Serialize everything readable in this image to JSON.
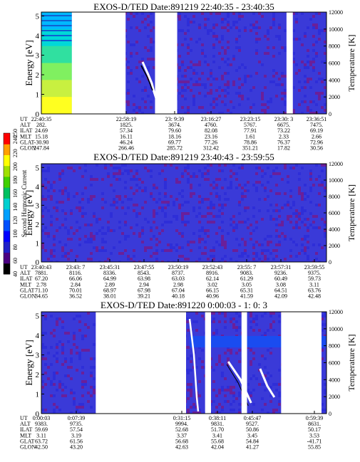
{
  "figure": {
    "colorbar": {
      "label": "Second Harmonic Current",
      "ticks": [
        "40",
        "60",
        "80",
        "100",
        "120",
        "140",
        "160",
        "180",
        "200",
        "220",
        "240",
        "250"
      ],
      "colors": [
        "#000000",
        "#4b0082",
        "#2020c8",
        "#0000ff",
        "#0050ff",
        "#00a0ff",
        "#00d0d0",
        "#00c060",
        "#40d000",
        "#a0e000",
        "#ffff00",
        "#ffa000",
        "#ff0000"
      ]
    },
    "panels": [
      {
        "title": "EXOS-D/TED   Date:891219  22:40:35 - 23:40:35",
        "ylabel": "Energy [eV]",
        "y2label": "Temperature [K]",
        "yticks": [
          "0",
          "1",
          "2",
          "3",
          "4",
          "5"
        ],
        "y2ticks": [
          "0",
          "2000",
          "4000",
          "6000",
          "8000",
          "10000",
          "12000"
        ],
        "rows": [
          "UT",
          "ALT",
          "ILAT",
          "MLT",
          "GLAT",
          "GLON"
        ],
        "columns": [
          [
            "22:40:35",
            "282.",
            "24.69",
            "15.18",
            "-30.90",
            "247.84"
          ],
          [
            "22:58:19",
            "1825.",
            "57.34",
            "16.11",
            "46.24",
            "266.46"
          ],
          [
            "23: 9:39",
            "3674.",
            "79.60",
            "18.16",
            "69.77",
            "285.72"
          ],
          [
            "23:16:27",
            "4760.",
            "82.08",
            "23.16",
            "77.26",
            "312.42"
          ],
          [
            "23:23:15",
            "5767.",
            "77.91",
            "1.61",
            "78.86",
            "351.21"
          ],
          [
            "23:30: 3",
            "6675.",
            "73.22",
            "2.33",
            "76.37",
            "17.82"
          ],
          [
            "23:36:51",
            "7475.",
            "69.19",
            "2.66",
            "72.96",
            "30.56"
          ]
        ]
      },
      {
        "title": "EXOS-D/TED   Date:891219  23:40:43 - 23:59:55",
        "ylabel": "Energy [eV]",
        "y2label": "Temperature [K]",
        "yticks": [
          "0",
          "1",
          "2",
          "3",
          "4",
          "5"
        ],
        "y2ticks": [
          "0",
          "2000",
          "4000",
          "6000",
          "8000",
          "10000",
          "12000"
        ],
        "rows": [
          "UT",
          "ALT",
          "ILAT",
          "MLT",
          "GLAT",
          "GLON"
        ],
        "columns": [
          [
            "23:40:43",
            "7881.",
            "67.20",
            "2.78",
            "71.10",
            "34.65"
          ],
          [
            "23:43: 7",
            "8116.",
            "66.06",
            "2.84",
            "70.01",
            "36.52"
          ],
          [
            "23:45:31",
            "8336.",
            "64.99",
            "2.89",
            "68.97",
            "38.01"
          ],
          [
            "23:47:55",
            "8543.",
            "63.98",
            "2.94",
            "67.98",
            "39.21"
          ],
          [
            "23:50:19",
            "8737.",
            "63.03",
            "2.98",
            "67.04",
            "40.18"
          ],
          [
            "23:52:43",
            "8916.",
            "62.14",
            "3.02",
            "66.15",
            "40.96"
          ],
          [
            "23:55: 7",
            "9083.",
            "61.29",
            "3.05",
            "65.31",
            "41.59"
          ],
          [
            "23:57:31",
            "9236.",
            "60.49",
            "3.08",
            "64.51",
            "42.09"
          ],
          [
            "23:59:55",
            "9375.",
            "59.73",
            "3.11",
            "63.76",
            "42.48"
          ]
        ]
      },
      {
        "title": "EXOS-D/TED   Date:891220  0:00:03 - 1: 0: 3",
        "ylabel": "Energy [eV]",
        "y2label": "Temperature [K]",
        "yticks": [
          "0",
          "1",
          "2",
          "3",
          "4",
          "5"
        ],
        "y2ticks": [
          "0",
          "2000",
          "4000",
          "6000",
          "8000",
          "10000",
          "12000"
        ],
        "rows": [
          "UT",
          "ALT",
          "ILAT",
          "MLT",
          "GLAT",
          "GLON"
        ],
        "columns": [
          [
            "0:00:03",
            "9383.",
            "59.69",
            "3.11",
            "63.72",
            "42.50"
          ],
          [
            "0:07:39",
            "9735.",
            "57.54",
            "3.19",
            "61.56",
            "43.20"
          ],
          [
            "0:31:15",
            "9994.",
            "52.68",
            "3.37",
            "56.68",
            "42.63"
          ],
          [
            "0:38:11",
            "9831.",
            "51.70",
            "3.41",
            "55.68",
            "42.04"
          ],
          [
            "0:45:47",
            "9527.",
            "50.86",
            "3.45",
            "54.84",
            "41.27"
          ],
          [
            "0:59:39",
            "8631.",
            "50.17",
            "3.53",
            "-41.71",
            "55.85"
          ]
        ]
      }
    ]
  },
  "chart_data": [
    {
      "type": "heatmap",
      "title": "EXOS-D/TED   Date:891219  22:40:35 - 23:40:35",
      "xlabel": "",
      "ylabel": "Energy [eV]",
      "y2label": "Temperature [K]",
      "ylim": [
        0,
        5.2
      ],
      "y2lim": [
        0,
        12000
      ],
      "x_start": "22:40:35",
      "x_end": "23:40:35",
      "x_ticks": [
        "22:40:35",
        "22:58:19",
        "23: 9:39",
        "23:16:27",
        "23:23:15",
        "23:30: 3",
        "23:36:51"
      ],
      "data_gaps": [
        [
          "22:47:00",
          "22:58:19"
        ],
        [
          "23:04:30",
          "23:09:10"
        ],
        [
          "23:32:10",
          "23:33:30"
        ]
      ],
      "colorbar_range": [
        40,
        250
      ]
    },
    {
      "type": "heatmap",
      "title": "EXOS-D/TED   Date:891219  23:40:43 - 23:59:55",
      "xlabel": "",
      "ylabel": "Energy [eV]",
      "y2label": "Temperature [K]",
      "ylim": [
        0,
        5.2
      ],
      "y2lim": [
        0,
        12000
      ],
      "x_start": "23:40:43",
      "x_end": "23:59:55",
      "x_ticks": [
        "23:40:43",
        "23:43: 7",
        "23:45:31",
        "23:47:55",
        "23:50:19",
        "23:52:43",
        "23:55: 7",
        "23:57:31",
        "23:59:55"
      ],
      "data_gaps": [],
      "colorbar_range": [
        40,
        250
      ]
    },
    {
      "type": "heatmap",
      "title": "EXOS-D/TED   Date:891220  0:00:03 - 1: 0: 3",
      "xlabel": "",
      "ylabel": "Energy [eV]",
      "y2label": "Temperature [K]",
      "ylim": [
        0,
        5.2
      ],
      "y2lim": [
        0,
        12000
      ],
      "x_start": "0:00:03",
      "x_end": "1: 0: 3",
      "x_ticks": [
        "0:00:03",
        "0:07:39",
        "0:31:15",
        "0:38:11",
        "0:45:47",
        "0:59:39"
      ],
      "data_gaps": [
        [
          "0:11:30",
          "0:30:30"
        ],
        [
          "0:34:30",
          "0:35:45"
        ],
        [
          "0:42:10",
          "0:43:20"
        ],
        [
          "0:50:30",
          "0:59:00"
        ]
      ],
      "colorbar_range": [
        40,
        250
      ]
    }
  ]
}
